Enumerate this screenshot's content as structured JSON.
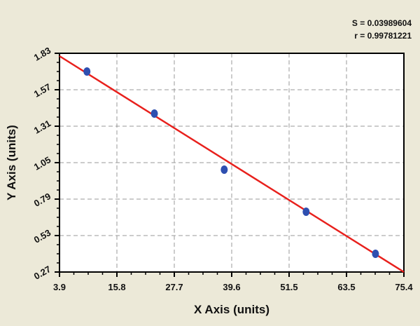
{
  "chart_data": {
    "type": "scatter",
    "xlabel": "X Axis (units)",
    "ylabel": "Y Axis (units)",
    "xlim": [
      3.9,
      75.4
    ],
    "ylim": [
      0.27,
      1.83
    ],
    "xticks": [
      "3.9",
      "15.8",
      "27.7",
      "39.6",
      "51.5",
      "63.5",
      "75.4"
    ],
    "yticks": [
      "0.27",
      "0.53",
      "0.79",
      "1.05",
      "1.31",
      "1.57",
      "1.83"
    ],
    "grid": true,
    "points": {
      "x": [
        9.6,
        23.6,
        38.1,
        55.1,
        69.5
      ],
      "y": [
        1.7,
        1.4,
        1.0,
        0.7,
        0.4
      ],
      "color": "#2e4fb0"
    },
    "fit_line": {
      "x": [
        3.9,
        75.4
      ],
      "y": [
        1.81,
        0.27
      ],
      "color": "#e8201c"
    },
    "annotations": {
      "s": "S = 0.03989604",
      "r": "r = 0.99781221"
    }
  }
}
